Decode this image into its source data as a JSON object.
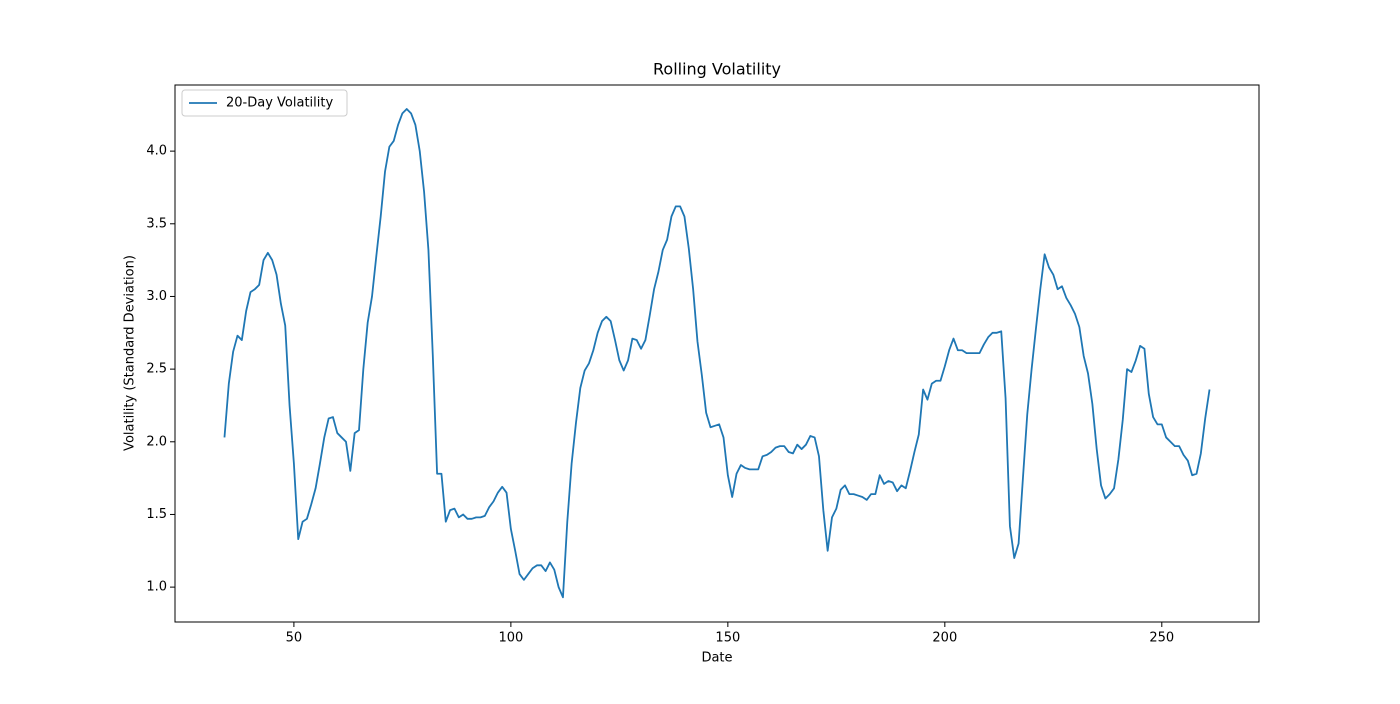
{
  "chart_data": {
    "type": "line",
    "title": "Rolling Volatility",
    "xlabel": "Date",
    "ylabel": "Volatility (Standard Deviation)",
    "x": [
      34,
      35,
      36,
      37,
      38,
      39,
      40,
      41,
      42,
      43,
      44,
      45,
      46,
      47,
      48,
      49,
      50,
      51,
      52,
      53,
      54,
      55,
      56,
      57,
      58,
      59,
      60,
      61,
      62,
      63,
      64,
      65,
      66,
      67,
      68,
      69,
      70,
      71,
      72,
      73,
      74,
      75,
      76,
      77,
      78,
      79,
      80,
      81,
      82,
      83,
      84,
      85,
      86,
      87,
      88,
      89,
      90,
      91,
      92,
      93,
      94,
      95,
      96,
      97,
      98,
      99,
      100,
      101,
      102,
      103,
      104,
      105,
      106,
      107,
      108,
      109,
      110,
      111,
      112,
      113,
      114,
      115,
      116,
      117,
      118,
      119,
      120,
      121,
      122,
      123,
      124,
      125,
      126,
      127,
      128,
      129,
      130,
      131,
      132,
      133,
      134,
      135,
      136,
      137,
      138,
      139,
      140,
      141,
      142,
      143,
      144,
      145,
      146,
      147,
      148,
      149,
      150,
      151,
      152,
      153,
      154,
      155,
      156,
      157,
      158,
      159,
      160,
      161,
      162,
      163,
      164,
      165,
      166,
      167,
      168,
      169,
      170,
      171,
      172,
      173,
      174,
      175,
      176,
      177,
      178,
      179,
      180,
      181,
      182,
      183,
      184,
      185,
      186,
      187,
      188,
      189,
      190,
      191,
      192,
      193,
      194,
      195,
      196,
      197,
      198,
      199,
      200,
      201,
      202,
      203,
      204,
      205,
      206,
      207,
      208,
      209,
      210,
      211,
      212,
      213,
      214,
      215,
      216,
      217,
      218,
      219,
      220,
      221,
      222,
      223,
      224,
      225,
      226,
      227,
      228,
      229,
      230,
      231,
      232,
      233,
      234,
      235,
      236,
      237,
      238,
      239,
      240,
      241,
      242,
      243,
      244,
      245,
      246,
      247,
      248,
      249,
      250,
      251,
      252,
      253,
      254,
      255,
      256,
      257,
      258,
      259,
      260,
      261
    ],
    "series": [
      {
        "name": "20-Day Volatility",
        "color": "#1f77b4",
        "values": [
          2.03,
          2.4,
          2.62,
          2.73,
          2.7,
          2.9,
          3.03,
          3.05,
          3.08,
          3.25,
          3.3,
          3.25,
          3.15,
          2.95,
          2.8,
          2.25,
          1.85,
          1.33,
          1.45,
          1.47,
          1.57,
          1.68,
          1.85,
          2.03,
          2.16,
          2.17,
          2.06,
          2.03,
          2.0,
          1.8,
          2.06,
          2.08,
          2.5,
          2.82,
          3.0,
          3.28,
          3.55,
          3.86,
          4.03,
          4.07,
          4.18,
          4.26,
          4.29,
          4.26,
          4.18,
          4.0,
          3.72,
          3.32,
          2.6,
          1.78,
          1.78,
          1.45,
          1.53,
          1.54,
          1.48,
          1.5,
          1.47,
          1.47,
          1.48,
          1.48,
          1.49,
          1.55,
          1.59,
          1.65,
          1.69,
          1.65,
          1.4,
          1.25,
          1.09,
          1.05,
          1.09,
          1.13,
          1.15,
          1.15,
          1.11,
          1.17,
          1.12,
          1.0,
          0.93,
          1.45,
          1.85,
          2.13,
          2.37,
          2.49,
          2.54,
          2.63,
          2.75,
          2.83,
          2.86,
          2.83,
          2.7,
          2.56,
          2.49,
          2.56,
          2.71,
          2.7,
          2.64,
          2.7,
          2.87,
          3.05,
          3.17,
          3.32,
          3.39,
          3.55,
          3.62,
          3.62,
          3.55,
          3.33,
          3.05,
          2.69,
          2.46,
          2.2,
          2.1,
          2.11,
          2.12,
          2.03,
          1.77,
          1.62,
          1.78,
          1.84,
          1.82,
          1.81,
          1.81,
          1.81,
          1.9,
          1.91,
          1.93,
          1.96,
          1.97,
          1.97,
          1.93,
          1.92,
          1.98,
          1.95,
          1.98,
          2.04,
          2.03,
          1.9,
          1.53,
          1.25,
          1.48,
          1.54,
          1.67,
          1.7,
          1.64,
          1.64,
          1.63,
          1.62,
          1.6,
          1.64,
          1.64,
          1.77,
          1.71,
          1.73,
          1.72,
          1.66,
          1.7,
          1.68,
          1.8,
          1.93,
          2.05,
          2.36,
          2.29,
          2.4,
          2.42,
          2.42,
          2.52,
          2.63,
          2.71,
          2.63,
          2.63,
          2.61,
          2.61,
          2.61,
          2.61,
          2.67,
          2.72,
          2.75,
          2.75,
          2.76,
          2.3,
          1.42,
          1.2,
          1.3,
          1.75,
          2.19,
          2.5,
          2.78,
          3.05,
          3.29,
          3.2,
          3.15,
          3.05,
          3.07,
          2.99,
          2.94,
          2.88,
          2.79,
          2.59,
          2.47,
          2.26,
          1.95,
          1.7,
          1.61,
          1.64,
          1.68,
          1.88,
          2.15,
          2.5,
          2.48,
          2.56,
          2.66,
          2.64,
          2.33,
          2.17,
          2.12,
          2.12,
          2.03,
          2.0,
          1.97,
          1.97,
          1.91,
          1.87,
          1.77,
          1.78,
          1.92,
          2.16,
          2.36
        ]
      }
    ],
    "xlim": [
      22.6,
      272.4
    ],
    "ylim": [
      0.76,
      4.455
    ],
    "xticks": [
      50,
      100,
      150,
      200,
      250
    ],
    "yticks": [
      {
        "value": 1,
        "label": "1.0"
      },
      1.5,
      {
        "value": 2,
        "label": "2.0"
      },
      2.5,
      {
        "value": 3,
        "label": "3.0"
      },
      3.5,
      {
        "value": 4,
        "label": "4.0"
      }
    ],
    "legend": "upper left",
    "grid": false
  }
}
